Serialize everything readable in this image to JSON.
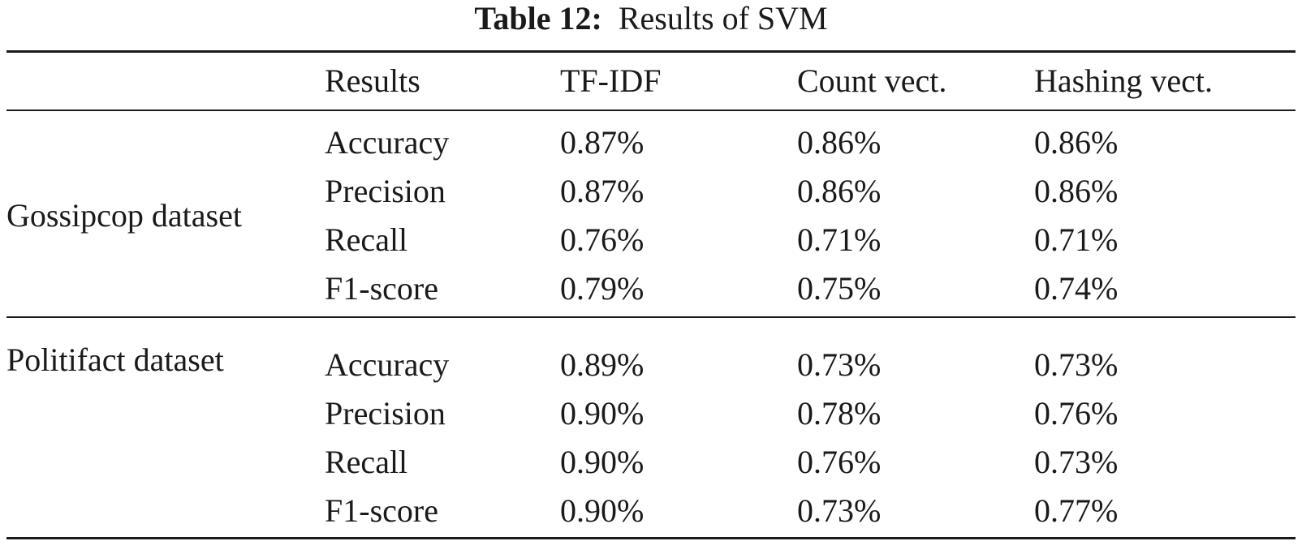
{
  "caption": {
    "label": "Table 12:",
    "text": "Results of SVM"
  },
  "table": {
    "headers": [
      "",
      "Results",
      "TF-IDF",
      "Count vect.",
      "Hashing vect."
    ],
    "groups": [
      {
        "name": "Gossipcop dataset",
        "rows": [
          [
            "Accuracy",
            "0.87%",
            "0.86%",
            "0.86%"
          ],
          [
            "Precision",
            "0.87%",
            "0.86%",
            "0.86%"
          ],
          [
            "Recall",
            "0.76%",
            "0.71%",
            "0.71%"
          ],
          [
            "F1-score",
            "0.79%",
            "0.75%",
            "0.74%"
          ]
        ]
      },
      {
        "name": "Politifact dataset",
        "rows": [
          [
            "Accuracy",
            "0.89%",
            "0.73%",
            "0.73%"
          ],
          [
            "Precision",
            "0.90%",
            "0.78%",
            "0.76%"
          ],
          [
            "Recall",
            "0.90%",
            "0.76%",
            "0.73%"
          ],
          [
            "F1-score",
            "0.90%",
            "0.73%",
            "0.77%"
          ]
        ]
      }
    ]
  }
}
